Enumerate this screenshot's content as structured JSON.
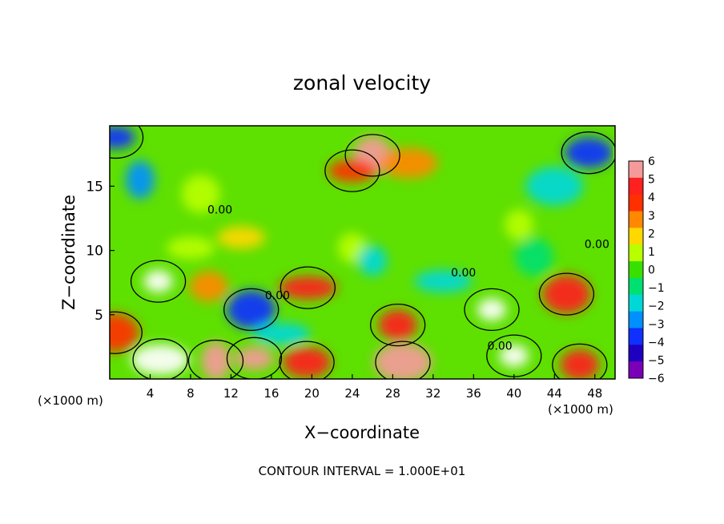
{
  "chart_data": {
    "type": "heatmap",
    "title": "zonal velocity",
    "xlabel": "X−coordinate",
    "ylabel": "Z−coordinate",
    "x_unit_left": "(×1000 m)",
    "x_unit_right": "(×1000 m)",
    "xlim": [
      0,
      50
    ],
    "ylim": [
      0,
      19.7
    ],
    "xticks": [
      4,
      8,
      12,
      16,
      20,
      24,
      28,
      32,
      36,
      40,
      44,
      48
    ],
    "yticks": [
      5,
      10,
      15
    ],
    "colorbar": {
      "min": -6,
      "max": 6,
      "ticks": [
        6,
        5,
        4,
        3,
        2,
        1,
        0,
        -1,
        -2,
        -3,
        -4,
        -5,
        -6
      ],
      "tick_labels": [
        "6",
        "5",
        "4",
        "3",
        "2",
        "1",
        "0",
        "−1",
        "−2",
        "−3",
        "−4",
        "−5",
        "−6"
      ],
      "colors": [
        "#f59a9a",
        "#ff2020",
        "#ff3000",
        "#ff8800",
        "#ffd800",
        "#b8ff00",
        "#38e000",
        "#00e070",
        "#00d8d8",
        "#0090ff",
        "#1030ff",
        "#2000c0",
        "#7a00b8"
      ]
    },
    "contour_labels": [
      {
        "x": 10.9,
        "z": 13.2,
        "text": "0.00"
      },
      {
        "x": 16.6,
        "z": 6.5,
        "text": "0.00"
      },
      {
        "x": 35.0,
        "z": 8.3,
        "text": "0.00"
      },
      {
        "x": 38.6,
        "z": 2.6,
        "text": "0.00"
      },
      {
        "x": 48.2,
        "z": 10.5,
        "text": "0.00"
      }
    ],
    "features": [
      {
        "x": 4.8,
        "z": 7.6,
        "value": -7
      },
      {
        "x": 9.8,
        "z": 7.2,
        "value": 3.5
      },
      {
        "x": 14.0,
        "z": 5.4,
        "value": -4
      },
      {
        "x": 19.6,
        "z": 7.1,
        "value": 4.8
      },
      {
        "x": 24.0,
        "z": 10.2,
        "value": 1.2
      },
      {
        "x": 26.0,
        "z": 17.4,
        "value": 5.6
      },
      {
        "x": 24.0,
        "z": 16.2,
        "value": 4.4
      },
      {
        "x": 29.6,
        "z": 16.8,
        "value": 3.2
      },
      {
        "x": 3.0,
        "z": 15.5,
        "value": -3
      },
      {
        "x": 0.6,
        "z": 18.8,
        "value": -4
      },
      {
        "x": 47.4,
        "z": 17.6,
        "value": -4
      },
      {
        "x": 44.0,
        "z": 15.0,
        "value": -1.5
      },
      {
        "x": 37.8,
        "z": 5.4,
        "value": -7
      },
      {
        "x": 28.5,
        "z": 4.2,
        "value": 5.2
      },
      {
        "x": 45.2,
        "z": 6.6,
        "value": 5.3
      },
      {
        "x": 33.0,
        "z": 7.6,
        "value": -2.2
      },
      {
        "x": 26.0,
        "z": 9.2,
        "value": -1.8
      },
      {
        "x": 9.0,
        "z": 14.4,
        "value": 1.4
      },
      {
        "x": 13.0,
        "z": 11.0,
        "value": 1.8
      },
      {
        "x": 5.0,
        "z": 1.5,
        "value": 6.4
      },
      {
        "x": 10.5,
        "z": 1.4,
        "value": 5.6
      },
      {
        "x": 14.3,
        "z": 1.6,
        "value": 5.8
      },
      {
        "x": 19.5,
        "z": 1.3,
        "value": 5.5
      },
      {
        "x": 29.0,
        "z": 1.3,
        "value": 5.6
      },
      {
        "x": 40.0,
        "z": 1.8,
        "value": 6.4
      },
      {
        "x": 46.5,
        "z": 1.1,
        "value": 5.2
      },
      {
        "x": 0.5,
        "z": 3.6,
        "value": 4.5
      },
      {
        "x": 17.0,
        "z": 3.5,
        "value": -1.5
      },
      {
        "x": 40.5,
        "z": 12.0,
        "value": 0.6
      },
      {
        "x": 42.0,
        "z": 9.5,
        "value": -1.2
      },
      {
        "x": 8.0,
        "z": 10.2,
        "value": 1.0
      }
    ],
    "footer": "CONTOUR INTERVAL = 1.000E+01"
  }
}
